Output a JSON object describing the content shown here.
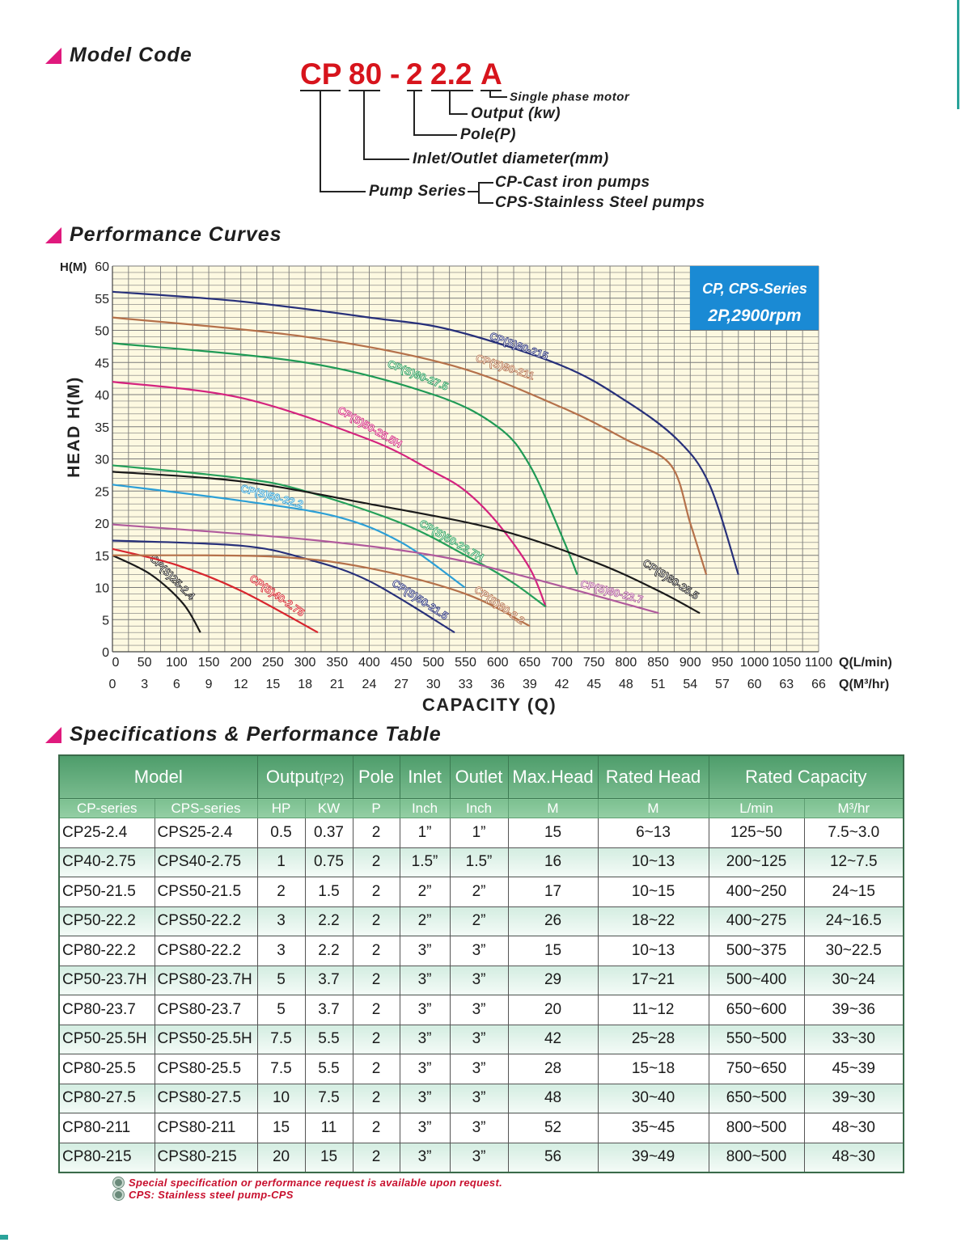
{
  "sections": {
    "model_code": "Model Code",
    "performance": "Performance Curves",
    "specs": "Specifications & Performance Table"
  },
  "model_code": {
    "parts": [
      "CP",
      "80",
      "-",
      "2",
      "2.2",
      "A"
    ],
    "labels": {
      "phase": "Single phase motor",
      "output": "Output (kw)",
      "pole": "Pole(P)",
      "diameter": "Inlet/Outlet diameter(mm)",
      "series": "Pump Series",
      "cp": "CP-Cast iron pumps",
      "cps": "CPS-Stainless Steel pumps"
    }
  },
  "chart_data": {
    "type": "line",
    "title": "Performance Curves",
    "badge": {
      "line1": "CP, CPS-Series",
      "line2": "2P,2900rpm"
    },
    "xlabel": "CAPACITY (Q)",
    "ylabel": "HEAD  H(M)",
    "y_unit_label": "H(M)",
    "x_unit_label": "Q(L/min)",
    "x2_unit_label": "Q(M³/hr)",
    "xlim": [
      0,
      1100
    ],
    "ylim": [
      0,
      60
    ],
    "grid": true,
    "x_ticks": [
      0,
      50,
      100,
      150,
      200,
      250,
      300,
      350,
      400,
      450,
      500,
      550,
      600,
      650,
      700,
      750,
      800,
      850,
      900,
      950,
      1000,
      1050,
      1100
    ],
    "x2_ticks": [
      0,
      3,
      6,
      9,
      12,
      15,
      18,
      21,
      24,
      27,
      30,
      33,
      36,
      39,
      42,
      45,
      48,
      51,
      54,
      57,
      60,
      63,
      66
    ],
    "y_ticks": [
      0,
      5,
      10,
      15,
      20,
      25,
      30,
      35,
      40,
      45,
      50,
      55,
      60
    ],
    "series": [
      {
        "name": "CP(S)80-215",
        "color": "#27307a",
        "x": [
          0,
          200,
          400,
          530,
          700,
          800,
          880,
          930,
          975
        ],
        "y": [
          56,
          54.5,
          52,
          50,
          44.5,
          39,
          33,
          26,
          12
        ]
      },
      {
        "name": "CP(S)80-211",
        "color": "#b5714a",
        "x": [
          0,
          300,
          530,
          700,
          800,
          870,
          900,
          925
        ],
        "y": [
          52,
          49,
          44.5,
          38,
          33,
          29,
          20,
          12
        ]
      },
      {
        "name": "CP(S)80-27.5",
        "color": "#1f9a55",
        "x": [
          0,
          300,
          500,
          600,
          650,
          700,
          724
        ],
        "y": [
          48,
          45,
          40,
          35,
          29,
          18,
          12
        ]
      },
      {
        "name": "CP(S)50-25.5H",
        "color": "#d4237e",
        "x": [
          0,
          200,
          400,
          500,
          550,
          600,
          650,
          675
        ],
        "y": [
          42,
          39.5,
          33,
          28,
          25,
          20,
          13,
          7
        ]
      },
      {
        "name": "CP(S)50-22.2",
        "color": "#2b9fd6",
        "x": [
          0,
          200,
          350,
          450,
          549
        ],
        "y": [
          26,
          23.5,
          21,
          17,
          10
        ]
      },
      {
        "name": "CP(S)50-23.7H",
        "color": "#24a05a",
        "x": [
          0,
          200,
          300,
          450,
          550,
          620,
          675
        ],
        "y": [
          29,
          27,
          25,
          20,
          15,
          11,
          7
        ]
      },
      {
        "name": "CP(S)80-23.7",
        "color": "#b05a9c",
        "x": [
          0,
          300,
          500,
          650,
          851
        ],
        "y": [
          19.8,
          17.5,
          15,
          11.5,
          6
        ]
      },
      {
        "name": "CP(S)80-25.5",
        "color": "#1a1a1a",
        "x": [
          0,
          200,
          400,
          600,
          750,
          850,
          915
        ],
        "y": [
          28,
          26.5,
          23,
          19,
          14,
          9.5,
          6
        ]
      },
      {
        "name": "CP(S)25-2.4",
        "color": "#1a1a1a",
        "x": [
          0,
          60,
          110,
          137
        ],
        "y": [
          15,
          12,
          7.5,
          3
        ]
      },
      {
        "name": "CP(S)40-2.75",
        "color": "#d8262e",
        "x": [
          0,
          100,
          200,
          320
        ],
        "y": [
          16,
          13.5,
          9.5,
          3
        ]
      },
      {
        "name": "CP(S)50-21.5",
        "color": "#27307a",
        "x": [
          0,
          200,
          300,
          400,
          533
        ],
        "y": [
          17.3,
          16.5,
          14.5,
          11,
          3
        ]
      },
      {
        "name": "CP(S)80-2.2",
        "color": "#b5714a",
        "x": [
          0,
          250,
          400,
          550,
          650
        ],
        "y": [
          15,
          14.8,
          13,
          9,
          4
        ]
      }
    ]
  },
  "table": {
    "header1": {
      "model": "Model",
      "output": "Output",
      "output_sub": "(P2)",
      "pole": "Pole",
      "inlet": "Inlet",
      "outlet": "Outlet",
      "max_head": "Max.Head",
      "rated_head": "Rated Head",
      "rated_capacity": "Rated Capacity"
    },
    "header2": [
      "CP-series",
      "CPS-series",
      "HP",
      "KW",
      "P",
      "Inch",
      "Inch",
      "M",
      "M",
      "L/min",
      "M³/hr"
    ],
    "rows": [
      [
        "CP25-2.4",
        "CPS25-2.4",
        "0.5",
        "0.37",
        "2",
        "1”",
        "1”",
        "15",
        "6~13",
        "125~50",
        "7.5~3.0"
      ],
      [
        "CP40-2.75",
        "CPS40-2.75",
        "1",
        "0.75",
        "2",
        "1.5”",
        "1.5”",
        "16",
        "10~13",
        "200~125",
        "12~7.5"
      ],
      [
        "CP50-21.5",
        "CPS50-21.5",
        "2",
        "1.5",
        "2",
        "2”",
        "2”",
        "17",
        "10~15",
        "400~250",
        "24~15"
      ],
      [
        "CP50-22.2",
        "CPS50-22.2",
        "3",
        "2.2",
        "2",
        "2”",
        "2”",
        "26",
        "18~22",
        "400~275",
        "24~16.5"
      ],
      [
        "CP80-22.2",
        "CPS80-22.2",
        "3",
        "2.2",
        "2",
        "3”",
        "3”",
        "15",
        "10~13",
        "500~375",
        "30~22.5"
      ],
      [
        "CP50-23.7H",
        "CPS80-23.7H",
        "5",
        "3.7",
        "2",
        "3”",
        "3”",
        "29",
        "17~21",
        "500~400",
        "30~24"
      ],
      [
        "CP80-23.7",
        "CPS80-23.7",
        "5",
        "3.7",
        "2",
        "3”",
        "3”",
        "20",
        "11~12",
        "650~600",
        "39~36"
      ],
      [
        "CP50-25.5H",
        "CPS50-25.5H",
        "7.5",
        "5.5",
        "2",
        "3”",
        "3”",
        "42",
        "25~28",
        "550~500",
        "33~30"
      ],
      [
        "CP80-25.5",
        "CPS80-25.5",
        "7.5",
        "5.5",
        "2",
        "3”",
        "3”",
        "28",
        "15~18",
        "750~650",
        "45~39"
      ],
      [
        "CP80-27.5",
        "CPS80-27.5",
        "10",
        "7.5",
        "2",
        "3”",
        "3”",
        "48",
        "30~40",
        "650~500",
        "39~30"
      ],
      [
        "CP80-211",
        "CPS80-211",
        "15",
        "11",
        "2",
        "3”",
        "3”",
        "52",
        "35~45",
        "800~500",
        "48~30"
      ],
      [
        "CP80-215",
        "CPS80-215",
        "20",
        "15",
        "2",
        "3”",
        "3”",
        "56",
        "39~49",
        "800~500",
        "48~30"
      ]
    ]
  },
  "notes": [
    "Special specification or performance request is available upon request.",
    "CPS: Stainless steel pump-CPS"
  ]
}
